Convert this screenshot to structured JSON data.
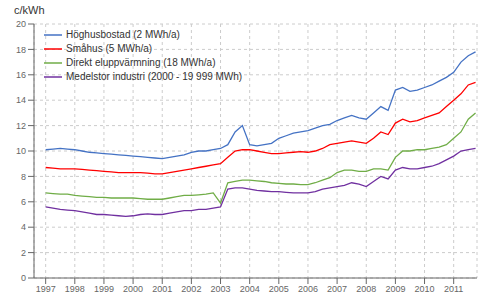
{
  "chart_data": {
    "type": "line",
    "ylabel": "c/kWh",
    "x": [
      1997,
      1997.25,
      1997.5,
      1997.75,
      1998,
      1998.25,
      1998.5,
      1998.75,
      1999,
      1999.25,
      1999.5,
      1999.75,
      2000,
      2000.25,
      2000.5,
      2000.75,
      2001,
      2001.25,
      2001.5,
      2001.75,
      2002,
      2002.25,
      2002.5,
      2002.75,
      2003,
      2003.25,
      2003.5,
      2003.75,
      2004,
      2004.25,
      2004.5,
      2004.75,
      2005,
      2005.25,
      2005.5,
      2005.75,
      2006,
      2006.25,
      2006.5,
      2006.75,
      2007,
      2007.25,
      2007.5,
      2007.75,
      2008,
      2008.25,
      2008.5,
      2008.75,
      2009,
      2009.25,
      2009.5,
      2009.75,
      2010,
      2010.25,
      2010.5,
      2010.75,
      2011,
      2011.25,
      2011.5,
      2011.75
    ],
    "series": [
      {
        "name": "Höghusbostad (2 MWh/a)",
        "color": "#4472c4",
        "values": [
          10.1,
          10.15,
          10.2,
          10.15,
          10.1,
          10.0,
          9.9,
          9.85,
          9.8,
          9.75,
          9.7,
          9.65,
          9.6,
          9.55,
          9.5,
          9.45,
          9.4,
          9.5,
          9.6,
          9.7,
          9.9,
          10.0,
          10.0,
          10.1,
          10.2,
          10.5,
          11.5,
          12.0,
          10.5,
          10.4,
          10.5,
          10.6,
          11.0,
          11.2,
          11.4,
          11.5,
          11.6,
          11.8,
          12.0,
          12.1,
          12.4,
          12.6,
          12.8,
          12.6,
          12.5,
          13.0,
          13.5,
          13.2,
          14.8,
          15.0,
          14.7,
          14.8,
          15.0,
          15.2,
          15.5,
          15.8,
          16.2,
          17.0,
          17.5,
          17.8
        ]
      },
      {
        "name": "Småhus (5 MWh/a)",
        "color": "#ff0000",
        "values": [
          8.7,
          8.65,
          8.6,
          8.6,
          8.6,
          8.55,
          8.5,
          8.45,
          8.4,
          8.35,
          8.3,
          8.3,
          8.3,
          8.3,
          8.25,
          8.2,
          8.2,
          8.3,
          8.4,
          8.5,
          8.6,
          8.7,
          8.8,
          8.9,
          9.0,
          9.5,
          10.0,
          10.1,
          10.1,
          10.0,
          9.9,
          9.8,
          9.8,
          9.85,
          9.9,
          9.95,
          9.9,
          10.0,
          10.2,
          10.5,
          10.6,
          10.7,
          10.8,
          10.7,
          10.6,
          11.0,
          11.5,
          11.3,
          12.2,
          12.5,
          12.3,
          12.4,
          12.6,
          12.8,
          13.0,
          13.5,
          14.0,
          14.5,
          15.2,
          15.4
        ]
      },
      {
        "name": "Direkt eluppvärmning (18 MWh/a)",
        "color": "#70ad47",
        "values": [
          6.7,
          6.65,
          6.6,
          6.6,
          6.5,
          6.45,
          6.4,
          6.35,
          6.35,
          6.3,
          6.3,
          6.3,
          6.3,
          6.25,
          6.2,
          6.2,
          6.2,
          6.3,
          6.4,
          6.5,
          6.5,
          6.55,
          6.6,
          6.7,
          5.9,
          7.5,
          7.6,
          7.7,
          7.7,
          7.65,
          7.6,
          7.5,
          7.45,
          7.4,
          7.4,
          7.35,
          7.35,
          7.5,
          7.7,
          7.9,
          8.3,
          8.5,
          8.5,
          8.4,
          8.4,
          8.6,
          8.6,
          8.5,
          9.5,
          10.0,
          10.0,
          10.1,
          10.1,
          10.2,
          10.3,
          10.5,
          11.0,
          11.5,
          12.5,
          13.0
        ]
      },
      {
        "name": "Medelstor industri (2000 - 19 999 MWh)",
        "color": "#7030a0",
        "values": [
          5.6,
          5.5,
          5.4,
          5.35,
          5.3,
          5.2,
          5.1,
          5.0,
          5.0,
          4.95,
          4.9,
          4.85,
          4.9,
          5.0,
          5.05,
          5.0,
          5.0,
          5.1,
          5.2,
          5.3,
          5.3,
          5.4,
          5.4,
          5.5,
          5.6,
          7.0,
          7.1,
          7.1,
          7.0,
          6.9,
          6.85,
          6.8,
          6.8,
          6.75,
          6.7,
          6.7,
          6.7,
          6.8,
          7.0,
          7.1,
          7.2,
          7.3,
          7.5,
          7.4,
          7.2,
          7.6,
          8.0,
          7.8,
          8.5,
          8.7,
          8.6,
          8.6,
          8.7,
          8.8,
          9.0,
          9.3,
          9.6,
          10.0,
          10.1,
          10.2
        ]
      }
    ],
    "xlim": [
      1996.6,
      2011.8
    ],
    "ylim": [
      0,
      20
    ],
    "xticks": [
      1997,
      1998,
      1999,
      2000,
      2001,
      2002,
      2003,
      2004,
      2005,
      2006,
      2007,
      2008,
      2009,
      2010,
      2011
    ],
    "yticks": [
      0,
      2,
      4,
      6,
      8,
      10,
      12,
      14,
      16,
      18,
      20
    ],
    "grid": true,
    "legend": "upper left"
  }
}
